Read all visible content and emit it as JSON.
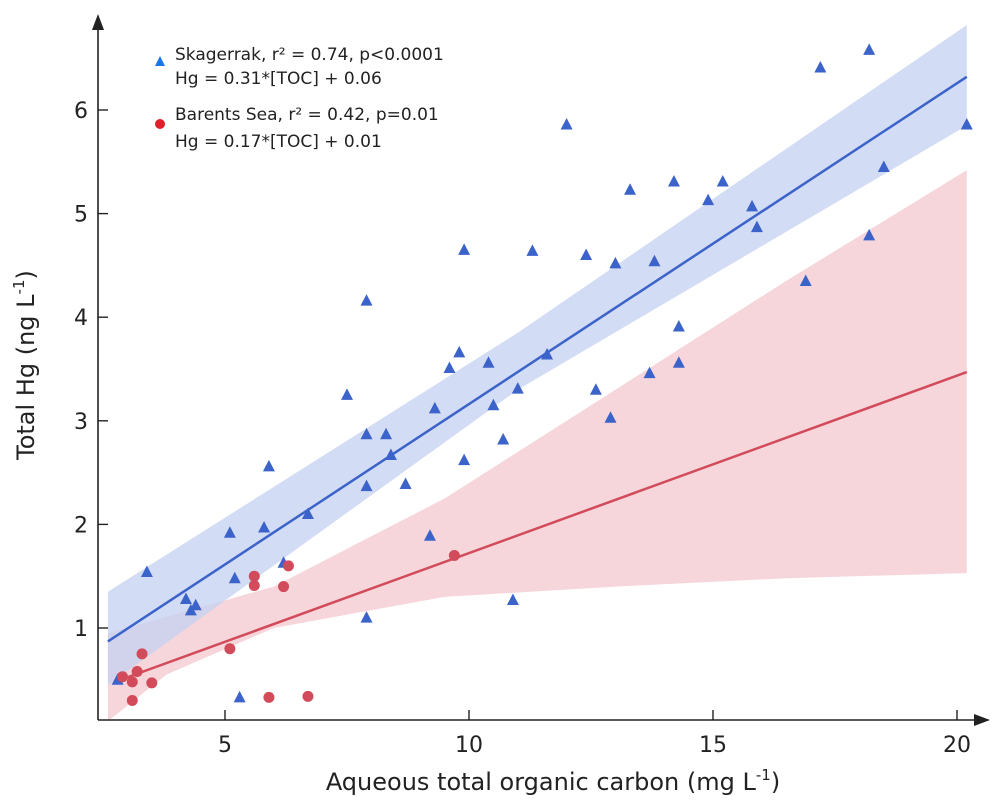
{
  "chart_data": {
    "type": "scatter",
    "xlabel": "Aqueous total organic carbon (mg L",
    "xlabel_sup": "-1",
    "xlabel_end": ")",
    "ylabel": "Total Hg (ng L",
    "ylabel_sup": "-1",
    "ylabel_end": ")",
    "xlim": [
      2.5,
      20.2
    ],
    "ylim": [
      0.05,
      6.9
    ],
    "x_ticks": [
      5,
      10,
      15,
      20
    ],
    "y_ticks": [
      1,
      2,
      3,
      4,
      5,
      6
    ],
    "grid": false,
    "legend_position": "top-left",
    "series": [
      {
        "name": "Skagerrak",
        "label": "Skagerrak, r² = 0.74, p<0.0001",
        "equation": "Hg = 0.31*[TOC] + 0.06",
        "marker": "triangle",
        "color": "#3b63c9",
        "legend_color": "#1a75e8",
        "band_color": "#c4d0f1",
        "fit_range": [
          2.6,
          20.2
        ],
        "fit_line": [
          [
            2.6,
            0.87
          ],
          [
            20.2,
            6.32
          ]
        ],
        "band_upper": [
          [
            2.6,
            1.35
          ],
          [
            11.0,
            3.85
          ],
          [
            20.2,
            6.82
          ]
        ],
        "band_lower": [
          [
            2.6,
            0.45
          ],
          [
            11.0,
            3.3
          ],
          [
            20.2,
            5.85
          ]
        ],
        "points": [
          [
            2.8,
            0.5
          ],
          [
            3.4,
            1.54
          ],
          [
            4.2,
            1.28
          ],
          [
            4.3,
            1.17
          ],
          [
            4.4,
            1.22
          ],
          [
            5.1,
            1.92
          ],
          [
            5.2,
            1.48
          ],
          [
            5.3,
            0.33
          ],
          [
            5.8,
            1.97
          ],
          [
            5.9,
            2.56
          ],
          [
            6.2,
            1.63
          ],
          [
            6.7,
            2.1
          ],
          [
            7.5,
            3.25
          ],
          [
            7.9,
            4.16
          ],
          [
            7.9,
            2.87
          ],
          [
            7.9,
            2.37
          ],
          [
            7.9,
            1.1
          ],
          [
            8.3,
            2.87
          ],
          [
            8.4,
            2.67
          ],
          [
            8.7,
            2.39
          ],
          [
            9.2,
            1.89
          ],
          [
            9.3,
            3.12
          ],
          [
            9.6,
            3.51
          ],
          [
            9.8,
            3.66
          ],
          [
            9.9,
            4.65
          ],
          [
            9.9,
            2.62
          ],
          [
            10.4,
            3.56
          ],
          [
            10.5,
            3.15
          ],
          [
            10.7,
            2.82
          ],
          [
            10.9,
            1.27
          ],
          [
            11.0,
            3.31
          ],
          [
            11.3,
            4.64
          ],
          [
            11.6,
            3.64
          ],
          [
            12.0,
            5.86
          ],
          [
            12.4,
            4.6
          ],
          [
            12.6,
            3.3
          ],
          [
            12.9,
            3.03
          ],
          [
            13.0,
            4.52
          ],
          [
            13.3,
            5.23
          ],
          [
            13.7,
            3.46
          ],
          [
            13.8,
            4.54
          ],
          [
            14.2,
            5.31
          ],
          [
            14.3,
            3.91
          ],
          [
            14.3,
            3.56
          ],
          [
            14.9,
            5.13
          ],
          [
            15.2,
            5.31
          ],
          [
            15.8,
            5.07
          ],
          [
            15.9,
            4.87
          ],
          [
            16.9,
            4.35
          ],
          [
            17.2,
            6.41
          ],
          [
            18.2,
            6.58
          ],
          [
            18.2,
            4.79
          ],
          [
            18.5,
            5.45
          ],
          [
            20.2,
            5.86
          ]
        ]
      },
      {
        "name": "Barents Sea",
        "label": "Barents Sea, r² = 0.42, p=0.01",
        "equation": "Hg = 0.17*[TOC] + 0.01",
        "marker": "circle",
        "color": "#d24b5a",
        "legend_color": "#e0202a",
        "band_color": "#f4ccd2",
        "fit_range": [
          2.8,
          20.2
        ],
        "fit_line": [
          [
            2.8,
            0.49
          ],
          [
            20.2,
            3.47
          ]
        ],
        "band_upper": [
          [
            2.6,
            0.95
          ],
          [
            6.0,
            1.4
          ],
          [
            9.5,
            2.25
          ],
          [
            13.0,
            3.3
          ],
          [
            16.5,
            4.35
          ],
          [
            20.2,
            5.42
          ]
        ],
        "band_lower": [
          [
            2.6,
            0.1
          ],
          [
            3.8,
            0.55
          ],
          [
            6.0,
            1.0
          ],
          [
            9.5,
            1.3
          ],
          [
            13.0,
            1.4
          ],
          [
            16.5,
            1.48
          ],
          [
            20.2,
            1.53
          ]
        ],
        "points": [
          [
            2.9,
            0.53
          ],
          [
            3.1,
            0.48
          ],
          [
            3.1,
            0.3
          ],
          [
            3.2,
            0.58
          ],
          [
            3.3,
            0.75
          ],
          [
            3.5,
            0.47
          ],
          [
            5.1,
            0.8
          ],
          [
            5.6,
            1.5
          ],
          [
            5.6,
            1.41
          ],
          [
            5.9,
            0.33
          ],
          [
            6.2,
            1.4
          ],
          [
            6.3,
            1.6
          ],
          [
            6.7,
            0.34
          ],
          [
            9.7,
            1.7
          ]
        ]
      }
    ]
  }
}
